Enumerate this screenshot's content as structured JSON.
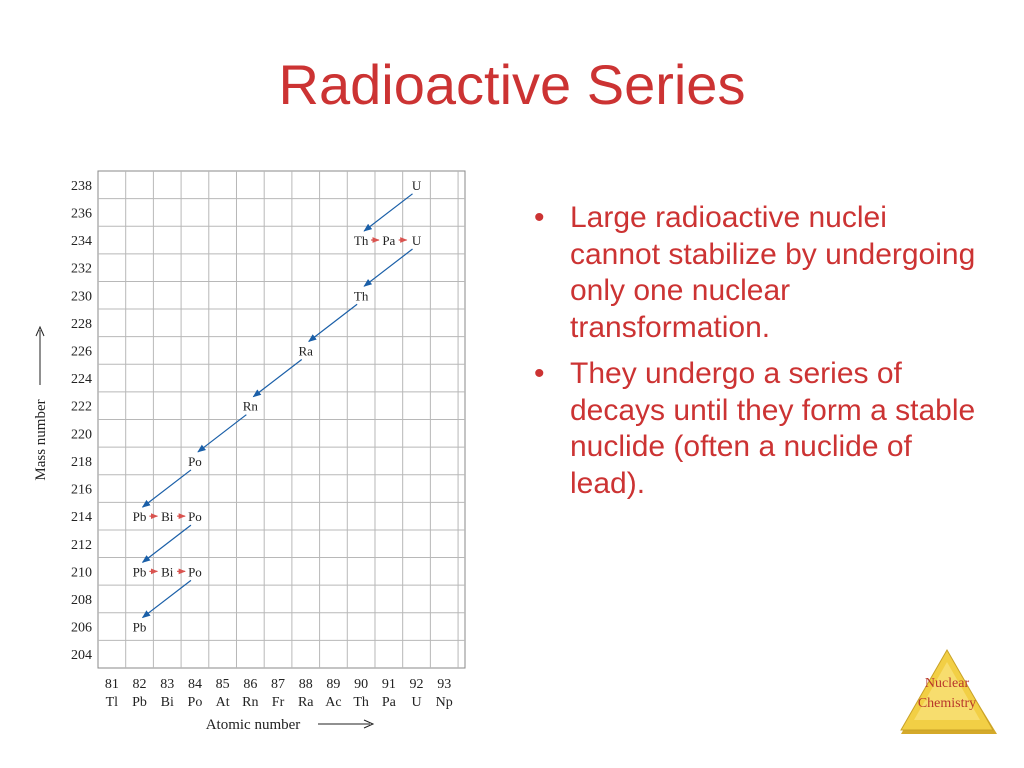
{
  "slide": {
    "title": "Radioactive Series",
    "bullets": [
      "Large radioactive nuclei cannot stabilize by undergoing only one nuclear transformation.",
      "They undergo a series of decays until they form a stable nuclide (often a nuclide of lead)."
    ],
    "badge_line1": "Nuclear",
    "badge_line2": "Chemistry"
  },
  "colors": {
    "title": "#cc3333",
    "arrow_blue": "#1a5fa8",
    "arrow_red": "#d9534f",
    "grid": "#b8b8b8",
    "badge_fill": "#f2cf45"
  },
  "chart_data": {
    "type": "diagram",
    "xlabel": "Atomic number",
    "ylabel": "Mass number",
    "x_ticks": [
      {
        "z": 81,
        "symbol": "Tl"
      },
      {
        "z": 82,
        "symbol": "Pb"
      },
      {
        "z": 83,
        "symbol": "Bi"
      },
      {
        "z": 84,
        "symbol": "Po"
      },
      {
        "z": 85,
        "symbol": "At"
      },
      {
        "z": 86,
        "symbol": "Rn"
      },
      {
        "z": 87,
        "symbol": "Fr"
      },
      {
        "z": 88,
        "symbol": "Ra"
      },
      {
        "z": 89,
        "symbol": "Ac"
      },
      {
        "z": 90,
        "symbol": "Th"
      },
      {
        "z": 91,
        "symbol": "Pa"
      },
      {
        "z": 92,
        "symbol": "U"
      },
      {
        "z": 93,
        "symbol": "Np"
      }
    ],
    "y_ticks": [
      238,
      236,
      234,
      232,
      230,
      228,
      226,
      224,
      222,
      220,
      218,
      216,
      214,
      212,
      210,
      208,
      206,
      204
    ],
    "nuclides": [
      {
        "symbol": "U",
        "z": 92,
        "a": 238
      },
      {
        "symbol": "Th",
        "z": 90,
        "a": 234
      },
      {
        "symbol": "Pa",
        "z": 91,
        "a": 234
      },
      {
        "symbol": "U",
        "z": 92,
        "a": 234
      },
      {
        "symbol": "Th",
        "z": 90,
        "a": 230
      },
      {
        "symbol": "Ra",
        "z": 88,
        "a": 226
      },
      {
        "symbol": "Rn",
        "z": 86,
        "a": 222
      },
      {
        "symbol": "Po",
        "z": 84,
        "a": 218
      },
      {
        "symbol": "Pb",
        "z": 82,
        "a": 214
      },
      {
        "symbol": "Bi",
        "z": 83,
        "a": 214
      },
      {
        "symbol": "Po",
        "z": 84,
        "a": 214
      },
      {
        "symbol": "Pb",
        "z": 82,
        "a": 210
      },
      {
        "symbol": "Bi",
        "z": 83,
        "a": 210
      },
      {
        "symbol": "Po",
        "z": 84,
        "a": 210
      },
      {
        "symbol": "Pb",
        "z": 82,
        "a": 206
      }
    ],
    "alpha_decays": [
      {
        "from": [
          92,
          238
        ],
        "to": [
          90,
          234
        ]
      },
      {
        "from": [
          92,
          234
        ],
        "to": [
          90,
          230
        ]
      },
      {
        "from": [
          90,
          230
        ],
        "to": [
          88,
          226
        ]
      },
      {
        "from": [
          88,
          226
        ],
        "to": [
          86,
          222
        ]
      },
      {
        "from": [
          86,
          222
        ],
        "to": [
          84,
          218
        ]
      },
      {
        "from": [
          84,
          218
        ],
        "to": [
          82,
          214
        ]
      },
      {
        "from": [
          84,
          214
        ],
        "to": [
          82,
          210
        ]
      },
      {
        "from": [
          84,
          210
        ],
        "to": [
          82,
          206
        ]
      }
    ],
    "beta_decays": [
      {
        "from": [
          90,
          234
        ],
        "to": [
          91,
          234
        ]
      },
      {
        "from": [
          91,
          234
        ],
        "to": [
          92,
          234
        ]
      },
      {
        "from": [
          82,
          214
        ],
        "to": [
          83,
          214
        ]
      },
      {
        "from": [
          83,
          214
        ],
        "to": [
          84,
          214
        ]
      },
      {
        "from": [
          82,
          210
        ],
        "to": [
          83,
          210
        ]
      },
      {
        "from": [
          83,
          210
        ],
        "to": [
          84,
          210
        ]
      }
    ]
  }
}
